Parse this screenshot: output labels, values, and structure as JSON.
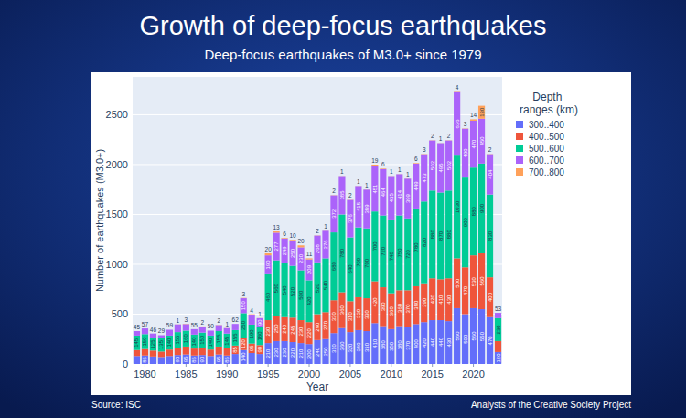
{
  "chart_data": {
    "type": "bar",
    "title": "Growth of deep-focus earthquakes",
    "subtitle": "Deep-focus earthquakes of M3.0+ since 1979",
    "x_label": "Year",
    "y_label": "Number of earthquakes (M3.0+)",
    "legend_title": "Depth ranges (km)",
    "annotations": [
      "Source: ISC",
      "Analysts of the Creative Society Project"
    ],
    "x": [
      1979,
      1980,
      1981,
      1982,
      1983,
      1984,
      1985,
      1986,
      1987,
      1988,
      1989,
      1990,
      1991,
      1992,
      1993,
      1994,
      1995,
      1996,
      1997,
      1998,
      1999,
      2000,
      2001,
      2002,
      2003,
      2004,
      2005,
      2006,
      2007,
      2008,
      2009,
      2010,
      2011,
      2012,
      2013,
      2014,
      2015,
      2016,
      2017,
      2018,
      2019,
      2020,
      2021,
      2022,
      2023
    ],
    "xlim": [
      1978.5,
      2023.5
    ],
    "xticks": [
      1980,
      1985,
      1990,
      1995,
      2000,
      2005,
      2010,
      2015,
      2020
    ],
    "ylim": [
      0,
      2880
    ],
    "yticks": [
      0,
      500,
      1000,
      1500,
      2000,
      2500
    ],
    "stacked": true,
    "data_labels": true,
    "grid": true,
    "legend": "right",
    "series": [
      {
        "name": "300..400",
        "color": "#636efa",
        "values": [
          80,
          85,
          75,
          70,
          80,
          90,
          95,
          85,
          90,
          80,
          95,
          85,
          100,
          140,
          110,
          100,
          210,
          230,
          230,
          220,
          210,
          200,
          240,
          250,
          310,
          360,
          320,
          340,
          330,
          410,
          380,
          350,
          380,
          370,
          400,
          420,
          440,
          440,
          430,
          560,
          500,
          560,
          550,
          470,
          120
        ]
      },
      {
        "name": "400..500",
        "color": "#ef553b",
        "values": [
          60,
          65,
          60,
          55,
          65,
          75,
          80,
          70,
          75,
          65,
          80,
          75,
          85,
          120,
          95,
          90,
          230,
          250,
          240,
          245,
          230,
          220,
          260,
          270,
          330,
          360,
          310,
          330,
          330,
          420,
          390,
          360,
          360,
          370,
          380,
          390,
          420,
          410,
          430,
          500,
          470,
          530,
          560,
          400,
          110
        ]
      },
      {
        "name": "500..600",
        "color": "#00cc96",
        "values": [
          145,
          150,
          125,
          135,
          140,
          155,
          160,
          140,
          150,
          140,
          155,
          145,
          155,
          250,
          190,
          180,
          460,
          560,
          540,
          520,
          500,
          420,
          520,
          540,
          680,
          780,
          640,
          700,
          700,
          700,
          720,
          740,
          750,
          720,
          780,
          820,
          880,
          870,
          880,
          1030,
          900,
          880,
          900,
          830,
          230
        ]
      },
      {
        "name": "600..700",
        "color": "#ab63fa",
        "values": [
          45,
          57,
          46,
          29,
          59,
          77,
          65,
          55,
          60,
          50,
          60,
          55,
          62,
          150,
          100,
          90,
          190,
          277,
          249,
          250,
          230,
          209,
          268,
          276,
          372,
          385,
          376,
          415,
          389,
          451,
          464,
          435,
          414,
          399,
          449,
          473,
          502,
          495,
          502,
          636,
          490,
          470,
          450,
          404,
          53
        ]
      },
      {
        "name": "700..800",
        "color": "#ffa15a",
        "values": [
          0,
          0,
          0,
          0,
          0,
          1,
          3,
          0,
          2,
          0,
          2,
          1,
          0,
          3,
          4,
          1,
          20,
          13,
          6,
          10,
          20,
          11,
          2,
          1,
          2,
          1,
          2,
          1,
          1,
          19,
          6,
          1,
          1,
          1,
          6,
          3,
          2,
          1,
          2,
          4,
          3,
          14,
          130,
          2,
          0
        ]
      }
    ]
  }
}
